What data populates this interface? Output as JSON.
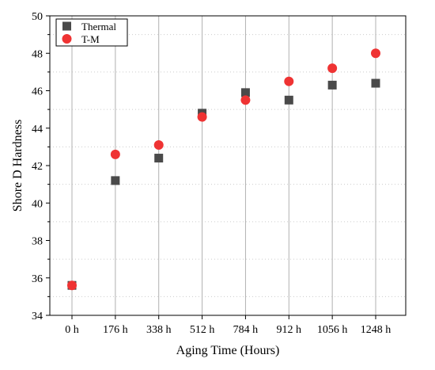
{
  "chart_data": {
    "type": "scatter",
    "title": "",
    "xlabel": "Aging Time (Hours)",
    "ylabel": "Shore D Hardness",
    "categories": [
      "0 h",
      "176 h",
      "338 h",
      "512 h",
      "784 h",
      "912 h",
      "1056 h",
      "1248 h"
    ],
    "ylim": [
      34,
      50
    ],
    "yticks": [
      34,
      36,
      38,
      40,
      42,
      44,
      46,
      48,
      50
    ],
    "grid": {
      "major_vertical": true,
      "minor_horizontal": true
    },
    "legend_position": "top-left",
    "series": [
      {
        "name": "Thermal",
        "marker": "square",
        "color": "#4a4a4a",
        "values": [
          35.6,
          41.2,
          42.4,
          44.8,
          45.9,
          45.5,
          46.3,
          46.4
        ]
      },
      {
        "name": "T-M",
        "marker": "circle",
        "color": "#ef3333",
        "values": [
          35.6,
          42.6,
          43.1,
          44.6,
          45.5,
          46.5,
          47.2,
          48.0
        ]
      }
    ]
  }
}
